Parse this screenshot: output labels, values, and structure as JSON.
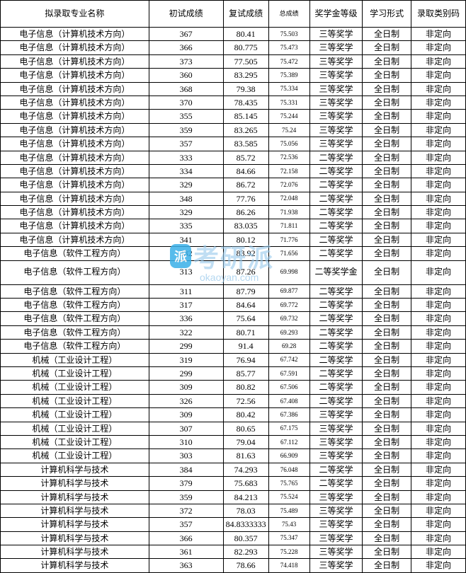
{
  "table": {
    "columns": [
      {
        "label": "拟录取专业名称",
        "class": "col-major"
      },
      {
        "label": "初试成绩",
        "class": "col-prelim"
      },
      {
        "label": "复试成绩",
        "class": "col-retest"
      },
      {
        "label": "总成绩",
        "class": "col-total"
      },
      {
        "label": "奖学金等级",
        "class": "col-scholar"
      },
      {
        "label": "学习形式",
        "class": "col-mode"
      },
      {
        "label": "录取类别码",
        "class": "col-type"
      }
    ],
    "rows": [
      {
        "major": "电子信息（计算机技术方向）",
        "prelim": "367",
        "retest": "80.41",
        "total": "75.503",
        "scholar": "三等奖学",
        "mode": "全日制",
        "type": "非定向"
      },
      {
        "major": "电子信息（计算机技术方向）",
        "prelim": "366",
        "retest": "80.775",
        "total": "75.473",
        "scholar": "三等奖学",
        "mode": "全日制",
        "type": "非定向"
      },
      {
        "major": "电子信息（计算机技术方向）",
        "prelim": "373",
        "retest": "77.505",
        "total": "75.472",
        "scholar": "三等奖学",
        "mode": "全日制",
        "type": "非定向"
      },
      {
        "major": "电子信息（计算机技术方向）",
        "prelim": "360",
        "retest": "83.295",
        "total": "75.389",
        "scholar": "三等奖学",
        "mode": "全日制",
        "type": "非定向"
      },
      {
        "major": "电子信息（计算机技术方向）",
        "prelim": "368",
        "retest": "79.38",
        "total": "75.334",
        "scholar": "三等奖学",
        "mode": "全日制",
        "type": "非定向"
      },
      {
        "major": "电子信息（计算机技术方向）",
        "prelim": "370",
        "retest": "78.435",
        "total": "75.331",
        "scholar": "三等奖学",
        "mode": "全日制",
        "type": "非定向"
      },
      {
        "major": "电子信息（计算机技术方向）",
        "prelim": "355",
        "retest": "85.145",
        "total": "75.244",
        "scholar": "三等奖学",
        "mode": "全日制",
        "type": "非定向"
      },
      {
        "major": "电子信息（计算机技术方向）",
        "prelim": "359",
        "retest": "83.265",
        "total": "75.24",
        "scholar": "三等奖学",
        "mode": "全日制",
        "type": "非定向"
      },
      {
        "major": "电子信息（计算机技术方向）",
        "prelim": "357",
        "retest": "83.585",
        "total": "75.056",
        "scholar": "三等奖学",
        "mode": "全日制",
        "type": "非定向"
      },
      {
        "major": "电子信息（计算机技术方向）",
        "prelim": "333",
        "retest": "85.72",
        "total": "72.536",
        "scholar": "二等奖学",
        "mode": "全日制",
        "type": "非定向"
      },
      {
        "major": "电子信息（计算机技术方向）",
        "prelim": "334",
        "retest": "84.66",
        "total": "72.158",
        "scholar": "二等奖学",
        "mode": "全日制",
        "type": "非定向"
      },
      {
        "major": "电子信息（计算机技术方向）",
        "prelim": "329",
        "retest": "86.72",
        "total": "72.076",
        "scholar": "二等奖学",
        "mode": "全日制",
        "type": "非定向"
      },
      {
        "major": "电子信息（计算机技术方向）",
        "prelim": "348",
        "retest": "77.76",
        "total": "72.048",
        "scholar": "二等奖学",
        "mode": "全日制",
        "type": "非定向"
      },
      {
        "major": "电子信息（计算机技术方向）",
        "prelim": "329",
        "retest": "86.26",
        "total": "71.938",
        "scholar": "二等奖学",
        "mode": "全日制",
        "type": "非定向"
      },
      {
        "major": "电子信息（计算机技术方向）",
        "prelim": "335",
        "retest": "83.035",
        "total": "71.811",
        "scholar": "二等奖学",
        "mode": "全日制",
        "type": "非定向"
      },
      {
        "major": "电子信息（计算机技术方向）",
        "prelim": "341",
        "retest": "80.12",
        "total": "71.776",
        "scholar": "二等奖学",
        "mode": "全日制",
        "type": "非定向"
      },
      {
        "major": "电子信息（软件工程方向）",
        "prelim": "332",
        "retest": "83.92",
        "total": "71.656",
        "scholar": "二等奖学",
        "mode": "全日制",
        "type": "非定向"
      },
      {
        "major": "电子信息（软件工程方向）",
        "prelim": "313",
        "retest": "87.26",
        "total": "69.998",
        "scholar": "二等奖学金",
        "mode": "全日制",
        "type": "非定向",
        "tall": true
      },
      {
        "major": "电子信息（软件工程方向）",
        "prelim": "311",
        "retest": "87.79",
        "total": "69.877",
        "scholar": "二等奖学",
        "mode": "全日制",
        "type": "非定向"
      },
      {
        "major": "电子信息（软件工程方向）",
        "prelim": "317",
        "retest": "84.64",
        "total": "69.772",
        "scholar": "二等奖学",
        "mode": "全日制",
        "type": "非定向"
      },
      {
        "major": "电子信息（软件工程方向）",
        "prelim": "336",
        "retest": "75.64",
        "total": "69.732",
        "scholar": "二等奖学",
        "mode": "全日制",
        "type": "非定向"
      },
      {
        "major": "电子信息（软件工程方向）",
        "prelim": "322",
        "retest": "80.71",
        "total": "69.293",
        "scholar": "二等奖学",
        "mode": "全日制",
        "type": "非定向"
      },
      {
        "major": "电子信息（软件工程方向）",
        "prelim": "299",
        "retest": "91.4",
        "total": "69.28",
        "scholar": "二等奖学",
        "mode": "全日制",
        "type": "非定向"
      },
      {
        "major": "机械（工业设计工程）",
        "prelim": "319",
        "retest": "76.94",
        "total": "67.742",
        "scholar": "二等奖学",
        "mode": "全日制",
        "type": "非定向"
      },
      {
        "major": "机械（工业设计工程）",
        "prelim": "299",
        "retest": "85.77",
        "total": "67.591",
        "scholar": "二等奖学",
        "mode": "全日制",
        "type": "非定向"
      },
      {
        "major": "机械（工业设计工程）",
        "prelim": "309",
        "retest": "80.82",
        "total": "67.506",
        "scholar": "二等奖学",
        "mode": "全日制",
        "type": "非定向"
      },
      {
        "major": "机械（工业设计工程）",
        "prelim": "326",
        "retest": "72.56",
        "total": "67.408",
        "scholar": "二等奖学",
        "mode": "全日制",
        "type": "非定向"
      },
      {
        "major": "机械（工业设计工程）",
        "prelim": "309",
        "retest": "80.42",
        "total": "67.386",
        "scholar": "三等奖学",
        "mode": "全日制",
        "type": "非定向"
      },
      {
        "major": "机械（工业设计工程）",
        "prelim": "307",
        "retest": "80.65",
        "total": "67.175",
        "scholar": "三等奖学",
        "mode": "全日制",
        "type": "非定向"
      },
      {
        "major": "机械（工业设计工程）",
        "prelim": "310",
        "retest": "79.04",
        "total": "67.112",
        "scholar": "三等奖学",
        "mode": "全日制",
        "type": "非定向"
      },
      {
        "major": "机械（工业设计工程）",
        "prelim": "303",
        "retest": "81.63",
        "total": "66.909",
        "scholar": "三等奖学",
        "mode": "全日制",
        "type": "非定向"
      },
      {
        "major": "计算机科学与技术",
        "prelim": "384",
        "retest": "74.293",
        "total": "76.048",
        "scholar": "二等奖学",
        "mode": "全日制",
        "type": "非定向"
      },
      {
        "major": "计算机科学与技术",
        "prelim": "379",
        "retest": "75.683",
        "total": "75.765",
        "scholar": "二等奖学",
        "mode": "全日制",
        "type": "非定向"
      },
      {
        "major": "计算机科学与技术",
        "prelim": "359",
        "retest": "84.213",
        "total": "75.524",
        "scholar": "三等奖学",
        "mode": "全日制",
        "type": "非定向"
      },
      {
        "major": "计算机科学与技术",
        "prelim": "372",
        "retest": "78.03",
        "total": "75.489",
        "scholar": "三等奖学",
        "mode": "全日制",
        "type": "非定向"
      },
      {
        "major": "计算机科学与技术",
        "prelim": "357",
        "retest": "84.8333333",
        "total": "75.43",
        "scholar": "三等奖学",
        "mode": "全日制",
        "type": "非定向"
      },
      {
        "major": "计算机科学与技术",
        "prelim": "366",
        "retest": "80.357",
        "total": "75.347",
        "scholar": "三等奖学",
        "mode": "全日制",
        "type": "非定向"
      },
      {
        "major": "计算机科学与技术",
        "prelim": "361",
        "retest": "82.293",
        "total": "75.228",
        "scholar": "三等奖学",
        "mode": "全日制",
        "type": "非定向"
      },
      {
        "major": "计算机科学与技术",
        "prelim": "363",
        "retest": "78.66",
        "total": "74.418",
        "scholar": "三等奖学",
        "mode": "全日制",
        "type": "非定向"
      }
    ],
    "border_color": "#000000",
    "background_color": "#ffffff",
    "font_size": 12,
    "total_font_size": 9
  },
  "watermark": {
    "badge_text": "派",
    "main_text": "考研派",
    "url_text": "okaoyan.com",
    "badge_bg": "#3ab0e8",
    "text_color": "rgba(150,200,235,0.6)"
  }
}
